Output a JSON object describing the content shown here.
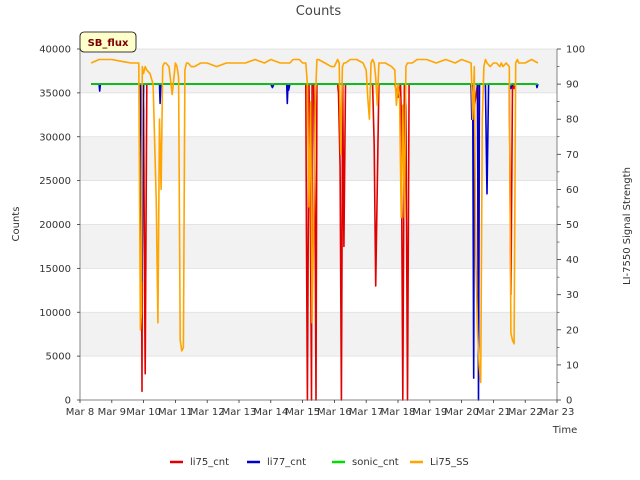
{
  "chart_data": {
    "type": "line",
    "title": "Counts",
    "xlabel": "Time",
    "ylabel": "Counts",
    "y2label": "LI-7550 Signal Strength",
    "badge": "SB_flux",
    "xlim": [
      8,
      23
    ],
    "ylim": [
      0,
      40000
    ],
    "y2lim": [
      0,
      100
    ],
    "x_ticks": [
      8,
      9,
      10,
      11,
      12,
      13,
      14,
      15,
      16,
      17,
      18,
      19,
      20,
      21,
      22,
      23
    ],
    "x_tick_labels": [
      "Mar 8",
      "Mar 9",
      "Mar 10",
      "Mar 11",
      "Mar 12",
      "Mar 13",
      "Mar 14",
      "Mar 15",
      "Mar 16",
      "Mar 17",
      "Mar 18",
      "Mar 19",
      "Mar 20",
      "Mar 21",
      "Mar 22",
      "Mar 23"
    ],
    "y_ticks": [
      0,
      5000,
      10000,
      15000,
      20000,
      25000,
      30000,
      35000,
      40000
    ],
    "y2_ticks": [
      0,
      10,
      20,
      30,
      40,
      50,
      60,
      70,
      80,
      90,
      100
    ],
    "legend_position": "bottom-center",
    "series": [
      {
        "name": "li75_cnt",
        "axis": "left",
        "color": "#e00000",
        "x": [
          8.35,
          9.9,
          9.92,
          9.95,
          9.97,
          10.0,
          10.03,
          10.05,
          10.1,
          15.1,
          15.12,
          15.15,
          15.2,
          15.25,
          15.28,
          15.3,
          15.35,
          15.4,
          15.42,
          15.45,
          15.5,
          15.6,
          15.63,
          16.1,
          16.13,
          16.18,
          16.22,
          16.26,
          16.3,
          16.35,
          16.4,
          17.0,
          17.1,
          17.2,
          17.25,
          17.3,
          17.4,
          17.7,
          17.9,
          18.0,
          18.08,
          18.1,
          18.15,
          18.2,
          18.25,
          18.3,
          18.35,
          18.4,
          18.6,
          19.0,
          20.0,
          20.3,
          20.35,
          20.5,
          20.53,
          20.56,
          20.6,
          21.0,
          21.2,
          21.5,
          21.55,
          21.6,
          21.65,
          21.7,
          21.75,
          22.3
        ],
        "values": [
          36000,
          36000,
          34000,
          1000,
          36000,
          33000,
          13000,
          3000,
          36000,
          36000,
          20000,
          0,
          36000,
          18000,
          0,
          36000,
          36000,
          16000,
          0,
          36000,
          36000,
          36000,
          36000,
          36000,
          35000,
          26500,
          0,
          36000,
          17500,
          36000,
          36000,
          36000,
          36000,
          36000,
          29000,
          13000,
          36000,
          36000,
          36000,
          34500,
          36000,
          33000,
          0,
          36000,
          33500,
          0,
          36000,
          36000,
          36000,
          36000,
          36000,
          36000,
          32000,
          36000,
          6000,
          36000,
          36000,
          36000,
          36000,
          36000,
          12000,
          36000,
          35500,
          36000,
          36000,
          36000
        ]
      },
      {
        "name": "li77_cnt",
        "axis": "left",
        "color": "#0000cc",
        "x": [
          8.35,
          8.6,
          8.62,
          8.64,
          9.9,
          9.95,
          10.0,
          10.05,
          10.1,
          10.5,
          10.52,
          10.54,
          10.56,
          10.6,
          11.0,
          14.0,
          14.05,
          14.1,
          14.5,
          14.52,
          14.54,
          14.56,
          14.6,
          15.0,
          20.0,
          20.3,
          20.32,
          20.35,
          20.38,
          20.4,
          20.45,
          20.5,
          20.53,
          20.56,
          20.6,
          20.65,
          20.7,
          20.75,
          20.8,
          20.85,
          20.9,
          21.0,
          21.5,
          21.55,
          21.6,
          21.7,
          22.0,
          22.35,
          22.37,
          22.4
        ],
        "values": [
          36000,
          36000,
          35200,
          36000,
          36000,
          13500,
          36000,
          36000,
          36000,
          36000,
          33800,
          36000,
          36000,
          36000,
          36000,
          36000,
          35600,
          36000,
          36000,
          33800,
          36000,
          35300,
          36000,
          36000,
          36000,
          36000,
          32000,
          36000,
          2500,
          36000,
          36000,
          36000,
          0,
          36000,
          36000,
          36000,
          36000,
          36000,
          23500,
          36000,
          36000,
          36000,
          36000,
          35500,
          36000,
          36000,
          36000,
          36000,
          35600,
          36000
        ]
      },
      {
        "name": "sonic_cnt",
        "axis": "left",
        "color": "#00dd00",
        "x": [
          8.35,
          22.4
        ],
        "values": [
          36000,
          36000
        ]
      },
      {
        "name": "Li75_SS",
        "axis": "right",
        "color": "#ffa500",
        "x": [
          8.35,
          8.6,
          9.0,
          9.3,
          9.6,
          9.85,
          9.9,
          9.93,
          9.96,
          10.0,
          10.05,
          10.1,
          10.2,
          10.3,
          10.4,
          10.45,
          10.5,
          10.55,
          10.6,
          10.65,
          10.7,
          10.8,
          10.9,
          11.0,
          11.05,
          11.1,
          11.15,
          11.2,
          11.25,
          11.3,
          11.35,
          11.4,
          11.5,
          11.6,
          11.8,
          12.0,
          12.3,
          12.6,
          12.9,
          13.2,
          13.5,
          13.8,
          14.0,
          14.3,
          14.5,
          14.6,
          14.7,
          14.9,
          15.0,
          15.1,
          15.15,
          15.2,
          15.25,
          15.3,
          15.35,
          15.4,
          15.45,
          15.5,
          15.7,
          15.9,
          16.0,
          16.1,
          16.15,
          16.2,
          16.25,
          16.3,
          16.35,
          16.5,
          16.7,
          16.9,
          17.0,
          17.05,
          17.1,
          17.15,
          17.2,
          17.25,
          17.3,
          17.35,
          17.4,
          17.6,
          17.8,
          17.9,
          17.95,
          18.0,
          18.05,
          18.1,
          18.15,
          18.2,
          18.25,
          18.3,
          18.35,
          18.45,
          18.6,
          18.9,
          19.2,
          19.5,
          19.8,
          20.0,
          20.3,
          20.35,
          20.4,
          20.45,
          20.5,
          20.55,
          20.6,
          20.65,
          20.7,
          20.75,
          20.8,
          20.9,
          21.0,
          21.1,
          21.2,
          21.25,
          21.3,
          21.4,
          21.5,
          21.55,
          21.6,
          21.65,
          21.7,
          21.75,
          21.8,
          22.0,
          22.2,
          22.4
        ],
        "values": [
          96,
          97,
          97,
          96.5,
          96,
          96,
          20,
          25,
          95,
          93,
          95,
          94,
          93,
          90,
          56,
          22,
          80,
          60,
          95,
          96,
          96,
          95,
          87,
          96,
          95,
          92,
          17,
          14,
          15,
          94,
          96,
          96,
          95,
          95,
          96,
          96,
          95,
          96,
          96,
          96,
          97,
          96,
          97,
          96,
          96,
          96,
          97,
          97,
          96,
          96,
          90,
          55,
          85,
          22,
          52,
          85,
          97,
          97,
          96,
          95,
          95,
          97,
          96,
          70,
          95,
          96,
          96,
          97,
          97,
          96,
          94,
          86,
          80,
          96,
          97,
          96,
          92,
          84,
          96,
          96,
          95,
          94,
          84,
          90,
          86,
          52,
          84,
          52,
          95,
          96,
          96,
          96,
          97,
          97,
          96,
          97,
          96,
          97,
          96,
          80,
          95,
          40,
          20,
          10,
          5,
          80,
          95,
          97,
          96,
          95,
          96,
          96,
          95,
          96,
          95,
          96,
          95,
          19,
          17,
          16,
          96,
          97,
          96,
          96,
          97,
          96
        ]
      }
    ]
  }
}
